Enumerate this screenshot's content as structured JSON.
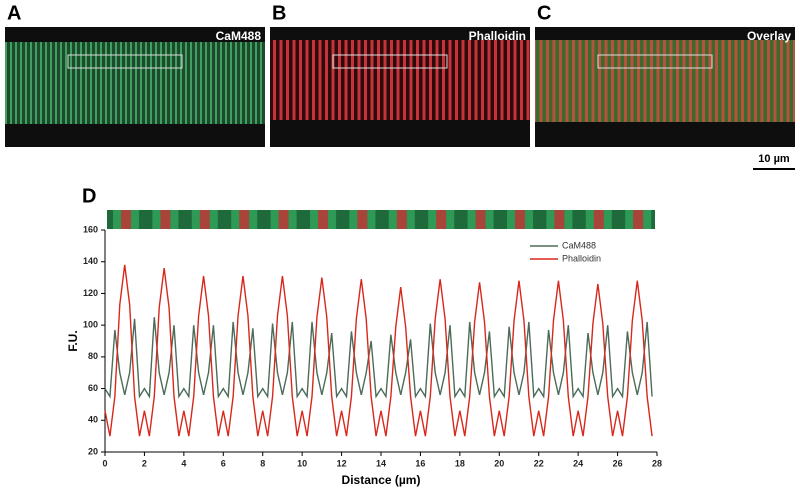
{
  "panels": [
    {
      "label": "A",
      "title": "CaM488"
    },
    {
      "label": "B",
      "title": "Phalloidin"
    },
    {
      "label": "C",
      "title": "Overlay"
    }
  ],
  "scale_bar": "10 µm",
  "chart_label": "D",
  "chart_data": {
    "type": "line",
    "x_label": "Distance (µm)",
    "y_label": "F.U.",
    "xlim": [
      0,
      28
    ],
    "xticks": [
      0,
      2,
      4,
      6,
      8,
      10,
      12,
      14,
      16,
      18,
      20,
      22,
      24,
      26,
      28
    ],
    "ylim": [
      20,
      160
    ],
    "yticks": [
      20,
      40,
      60,
      80,
      100,
      120,
      140,
      160
    ],
    "legend": "upper right",
    "x": [
      0,
      0.25,
      0.5,
      0.75,
      1,
      1.25,
      1.5,
      1.75,
      2,
      2.25,
      2.5,
      2.75,
      3,
      3.25,
      3.5,
      3.75,
      4,
      4.25,
      4.5,
      4.75,
      5,
      5.25,
      5.5,
      5.75,
      6,
      6.25,
      6.5,
      6.75,
      7,
      7.25,
      7.5,
      7.75,
      8,
      8.25,
      8.5,
      8.75,
      9,
      9.25,
      9.5,
      9.75,
      10,
      10.25,
      10.5,
      10.75,
      11,
      11.25,
      11.5,
      11.75,
      12,
      12.25,
      12.5,
      12.75,
      13,
      13.25,
      13.5,
      13.75,
      14,
      14.25,
      14.5,
      14.75,
      15,
      15.25,
      15.5,
      15.75,
      16,
      16.25,
      16.5,
      16.75,
      17,
      17.25,
      17.5,
      17.75,
      18,
      18.25,
      18.5,
      18.75,
      19,
      19.25,
      19.5,
      19.75,
      20,
      20.25,
      20.5,
      20.75,
      21,
      21.25,
      21.5,
      21.75,
      22,
      22.25,
      22.5,
      22.75,
      23,
      23.25,
      23.5,
      23.75,
      24,
      24.25,
      24.5,
      24.75,
      25,
      25.25,
      25.5,
      25.75,
      26,
      26.25,
      26.5,
      26.75,
      27,
      27.25,
      27.5,
      27.75
    ],
    "series": [
      {
        "name": "CaM488",
        "color": "#4d6b5a",
        "values": [
          60,
          55,
          97,
          70,
          56,
          70,
          104,
          55,
          60,
          55,
          105,
          70,
          56,
          70,
          100,
          55,
          60,
          55,
          100,
          70,
          56,
          70,
          100,
          55,
          60,
          55,
          102,
          70,
          56,
          70,
          98,
          55,
          60,
          55,
          101,
          70,
          56,
          70,
          102,
          55,
          60,
          55,
          102,
          70,
          56,
          70,
          95,
          55,
          60,
          55,
          96,
          70,
          56,
          70,
          90,
          55,
          60,
          55,
          94,
          70,
          56,
          70,
          91,
          55,
          60,
          55,
          101,
          70,
          56,
          70,
          100,
          55,
          60,
          55,
          102,
          70,
          56,
          70,
          96,
          55,
          60,
          55,
          99,
          70,
          56,
          70,
          102,
          55,
          60,
          55,
          97,
          70,
          56,
          70,
          100,
          55,
          60,
          55,
          95,
          70,
          56,
          70,
          100,
          55,
          60,
          55,
          96,
          70,
          56,
          70,
          102,
          55
        ]
      },
      {
        "name": "Phalloidin",
        "color": "#d8281c",
        "values": [
          46,
          30,
          55,
          113,
          138,
          113,
          55,
          30,
          46,
          30,
          55,
          111,
          136,
          111,
          55,
          30,
          46,
          30,
          55,
          106,
          131,
          106,
          55,
          30,
          46,
          30,
          55,
          106,
          131,
          106,
          55,
          30,
          46,
          30,
          55,
          106,
          131,
          106,
          55,
          30,
          46,
          30,
          55,
          105,
          130,
          105,
          55,
          30,
          46,
          30,
          55,
          104,
          129,
          104,
          55,
          30,
          46,
          30,
          55,
          99,
          124,
          99,
          55,
          30,
          46,
          30,
          55,
          104,
          129,
          104,
          55,
          30,
          46,
          30,
          55,
          102,
          127,
          102,
          55,
          30,
          46,
          30,
          55,
          103,
          128,
          103,
          55,
          30,
          46,
          30,
          55,
          103,
          128,
          103,
          55,
          30,
          46,
          30,
          55,
          101,
          126,
          101,
          55,
          30,
          46,
          30,
          55,
          103,
          128,
          103,
          55,
          30
        ]
      }
    ]
  }
}
